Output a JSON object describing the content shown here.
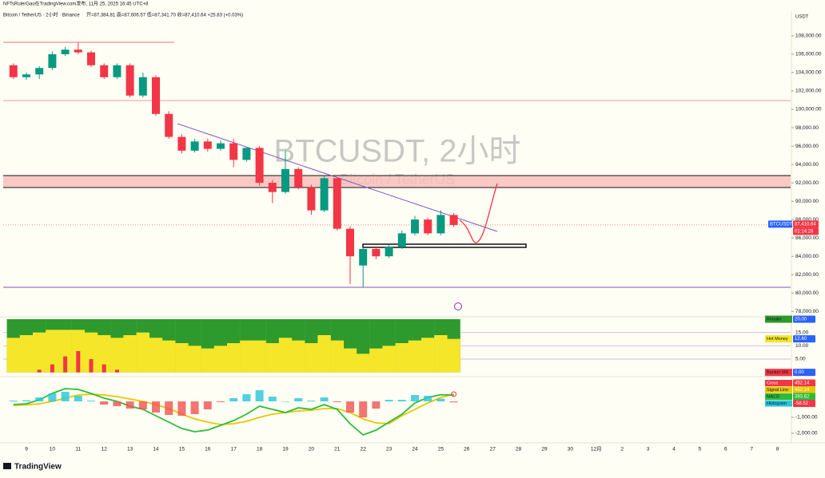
{
  "header": {
    "publisher": "NFTsRulerGao在TradingView.com发布, 11月 25, 2025 16:45 UTC+8",
    "symbol": "Bitcoin / TetherUS · 2小时 · Binance",
    "ohlc": "开=87,384.81 高=87,606.57 低=87,341.70 收=87,410.64 +25.83 (+0.03%)",
    "currency": "USDT",
    "watermark_title": "BTCUSDT, 2小时",
    "watermark_subtitle": "Bitcoin / TetherUS",
    "footer": "TradingView"
  },
  "chart_data": [
    {
      "type": "candlestick",
      "categories": [
        null,
        "9",
        null,
        "10",
        null,
        "11",
        null,
        "12",
        null,
        "13",
        null,
        "14",
        null,
        "15",
        null,
        "16",
        null,
        "17",
        null,
        "18",
        null,
        "19",
        null,
        "20",
        null,
        "21",
        null,
        "22",
        null,
        "23",
        null,
        "24",
        null,
        "25",
        null,
        "26",
        null,
        "27",
        null,
        "28",
        null,
        "29",
        null,
        "30",
        null,
        "12月",
        null,
        "2",
        null,
        "3",
        null,
        "4",
        null,
        "5",
        null,
        "6",
        null,
        "7",
        null,
        "8",
        null
      ],
      "open": [
        104800,
        103500,
        103800,
        104500,
        106000,
        106500,
        106200,
        104800,
        103500,
        104800,
        101500,
        103500,
        99500,
        97000,
        95500,
        96500,
        95700,
        96300,
        94500,
        95800,
        92000,
        91000,
        93500,
        91500,
        89000,
        92500,
        87000,
        83000,
        84800,
        84000,
        85000,
        86500,
        88000,
        86500,
        88500,
        null,
        null,
        null,
        null,
        null,
        null,
        null,
        null,
        null,
        null,
        null,
        null,
        null,
        null,
        null,
        null,
        null,
        null,
        null,
        null,
        null,
        null,
        null,
        null,
        null,
        null
      ],
      "high": [
        105000,
        104000,
        104700,
        106300,
        106800,
        107300,
        106400,
        105000,
        105000,
        105000,
        104000,
        103700,
        99800,
        97300,
        96800,
        96800,
        96600,
        96800,
        95900,
        96000,
        92300,
        95500,
        93700,
        91800,
        92800,
        92600,
        87300,
        85000,
        85100,
        85300,
        86800,
        88400,
        88200,
        89000,
        88700,
        null,
        null,
        null,
        null,
        null,
        null,
        null,
        null,
        null,
        null,
        null,
        null,
        null,
        null,
        null,
        null,
        null,
        null,
        null,
        null,
        null,
        null,
        null,
        null,
        null,
        null
      ],
      "low": [
        103300,
        103200,
        103300,
        104300,
        105800,
        106000,
        104600,
        103300,
        103300,
        101300,
        101300,
        99300,
        96800,
        95200,
        95300,
        95400,
        95500,
        93700,
        94300,
        91700,
        89800,
        90800,
        91300,
        88500,
        88800,
        86800,
        81000,
        80600,
        83700,
        83800,
        84800,
        86300,
        86300,
        86300,
        87200,
        null,
        null,
        null,
        null,
        null,
        null,
        null,
        null,
        null,
        null,
        null,
        null,
        null,
        null,
        null,
        null,
        null,
        null,
        null,
        null,
        null,
        null,
        null,
        null,
        null,
        null
      ],
      "close": [
        103500,
        103800,
        104500,
        106000,
        106500,
        106200,
        104800,
        103500,
        104800,
        101500,
        103500,
        99500,
        97000,
        95500,
        96500,
        95700,
        96300,
        94500,
        95800,
        92000,
        91000,
        93500,
        91500,
        89000,
        92500,
        87000,
        84000,
        84800,
        84000,
        85000,
        86500,
        88000,
        86500,
        88500,
        87410.64,
        null,
        null,
        null,
        null,
        null,
        null,
        null,
        null,
        null,
        null,
        null,
        null,
        null,
        null,
        null,
        null,
        null,
        null,
        null,
        null,
        null,
        null,
        null,
        null,
        null,
        null
      ],
      "up_color": "#089981",
      "down_color": "#f23645",
      "symbol_label": "BTCUSDT",
      "last_price_label": "87,410.64",
      "countdown": "01:14:28",
      "ylim": [
        77500,
        110600
      ],
      "yticks": [
        {
          "value": 78000,
          "label": "78,000.00"
        },
        {
          "value": 80000,
          "label": "80,000.00"
        },
        {
          "value": 82000,
          "label": "82,000.00"
        },
        {
          "value": 84000,
          "label": "84,000.00"
        },
        {
          "value": 86000,
          "label": "86,000.00"
        },
        {
          "value": 88000,
          "label": "88,000.00"
        },
        {
          "value": 90000,
          "label": "90,000.00"
        },
        {
          "value": 92000,
          "label": "92,000.00"
        },
        {
          "value": 94000,
          "label": "94,000.00"
        },
        {
          "value": 96000,
          "label": "96,000.00"
        },
        {
          "value": 98000,
          "label": "98,000.00"
        },
        {
          "value": 100000,
          "label": "100,000.00"
        },
        {
          "value": 102000,
          "label": "102,000.00"
        },
        {
          "value": 104000,
          "label": "104,000.00"
        },
        {
          "value": 106000,
          "label": "106,000.00"
        },
        {
          "value": 108000,
          "label": "108,000.00"
        }
      ],
      "grid": false
    },
    {
      "type": "bar",
      "series": [
        {
          "name": "Retailer",
          "color": "#2e9a2e",
          "last_value_label": "20.00",
          "values": [
            20,
            20,
            20,
            20,
            20,
            20,
            20,
            20,
            20,
            20,
            20,
            20,
            20,
            20,
            20,
            20,
            20,
            20,
            20,
            20,
            20,
            20,
            20,
            20,
            20,
            20,
            20,
            20,
            20,
            20,
            20,
            20,
            20,
            20,
            20,
            null,
            null,
            null,
            null,
            null,
            null,
            null,
            null,
            null,
            null,
            null,
            null,
            null,
            null,
            null,
            null,
            null,
            null,
            null,
            null,
            null,
            null,
            null,
            null,
            null,
            null
          ]
        },
        {
          "name": "Hot Money",
          "color": "#f5e62a",
          "last_value_label": "12.60",
          "values": [
            13,
            14,
            15,
            16,
            16,
            16,
            15,
            14,
            13,
            14,
            15,
            13,
            12,
            11,
            10,
            9,
            10,
            11,
            12,
            12,
            11,
            13,
            12,
            11,
            14,
            12,
            9,
            7,
            9,
            10,
            11,
            12,
            13,
            14,
            12.6,
            null,
            null,
            null,
            null,
            null,
            null,
            null,
            null,
            null,
            null,
            null,
            null,
            null,
            null,
            null,
            null,
            null,
            null,
            null,
            null,
            null,
            null,
            null,
            null,
            null,
            null
          ]
        },
        {
          "name": "Banker MA",
          "color": "#f23645",
          "last_value_label": "0.00",
          "values": [
            0,
            0,
            1,
            3,
            6,
            8,
            5,
            3,
            1,
            0,
            0,
            0,
            0,
            0,
            0,
            0,
            0,
            0,
            0,
            0,
            0,
            0,
            0,
            0,
            0,
            0,
            0,
            0,
            0,
            0,
            0,
            0,
            0,
            0,
            0,
            null,
            null,
            null,
            null,
            null,
            null,
            null,
            null,
            null,
            null,
            null,
            null,
            null,
            null,
            null,
            null,
            null,
            null,
            null,
            null,
            null,
            null,
            null,
            null,
            null,
            null
          ]
        }
      ],
      "ylim": [
        -1,
        20.6
      ],
      "yticks": [
        {
          "value": 5,
          "label": "5.00"
        },
        {
          "value": 10,
          "label": "10.00"
        },
        {
          "value": 15,
          "label": "15.00"
        }
      ],
      "grid": true
    },
    {
      "type": "macd",
      "cross": {
        "name": "Cross",
        "value": 452.14,
        "value_label": "452.14"
      },
      "series": [
        {
          "name": "Signal Line",
          "type": "line",
          "color": "#e8c600",
          "last_value_label": "452.14",
          "values": [
            -250,
            -220,
            -150,
            0,
            200,
            400,
            450,
            400,
            300,
            150,
            0,
            -200,
            -450,
            -800,
            -1100,
            -1300,
            -1450,
            -1400,
            -1250,
            -1000,
            -800,
            -700,
            -600,
            -550,
            -450,
            -450,
            -700,
            -1100,
            -1350,
            -1400,
            -900,
            -500,
            -100,
            250,
            452.14,
            null,
            null,
            null,
            null,
            null,
            null,
            null,
            null,
            null,
            null,
            null,
            null,
            null,
            null,
            null,
            null,
            null,
            null,
            null,
            null,
            null,
            null,
            null,
            null,
            null,
            null
          ]
        },
        {
          "name": "MACD",
          "type": "line",
          "color": "#2dbb3a",
          "last_value_label": "393.62",
          "values": [
            -200,
            -150,
            100,
            500,
            800,
            750,
            500,
            200,
            0,
            -300,
            -500,
            -900,
            -1300,
            -1700,
            -1900,
            -1800,
            -1500,
            -1200,
            -800,
            -300,
            -500,
            -700,
            -400,
            -500,
            -200,
            -500,
            -1400,
            -2100,
            -1800,
            -1300,
            -800,
            -100,
            250,
            420,
            393.62,
            null,
            null,
            null,
            null,
            null,
            null,
            null,
            null,
            null,
            null,
            null,
            null,
            null,
            null,
            null,
            null,
            null,
            null,
            null,
            null,
            null,
            null,
            null,
            null,
            null,
            null
          ]
        },
        {
          "name": "Histogram",
          "type": "bar",
          "color": "#26c6da",
          "last_value_label": "-58.52",
          "values": [
            50,
            70,
            250,
            500,
            600,
            350,
            50,
            -200,
            -300,
            -450,
            -500,
            -700,
            -850,
            -900,
            -800,
            -500,
            -50,
            200,
            450,
            700,
            300,
            0,
            200,
            50,
            250,
            -50,
            -700,
            -1000,
            -450,
            100,
            100,
            400,
            350,
            170,
            -58.52,
            null,
            null,
            null,
            null,
            null,
            null,
            null,
            null,
            null,
            null,
            null,
            null,
            null,
            null,
            null,
            null,
            null,
            null,
            null,
            null,
            null,
            null,
            null,
            null,
            null,
            null
          ]
        }
      ],
      "ylim": [
        -2500,
        1400
      ],
      "yticks": [
        {
          "value": -2000,
          "label": "-2,000.00"
        },
        {
          "value": -1000,
          "label": "-1,000.00"
        }
      ],
      "grid": false
    }
  ]
}
